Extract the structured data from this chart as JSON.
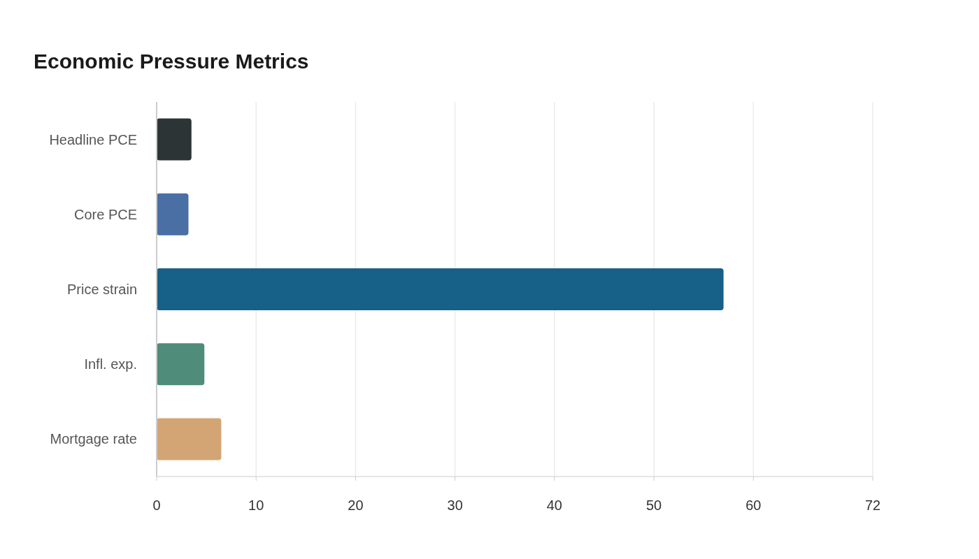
{
  "chart_data": {
    "type": "bar",
    "title": "Economic Pressure Metrics",
    "orientation": "horizontal",
    "categories": [
      "Headline PCE",
      "Core PCE",
      "Price strain",
      "Infl. exp.",
      "Mortgage rate"
    ],
    "values": [
      3.5,
      3.2,
      57,
      4.8,
      6.5
    ],
    "colors": [
      "#2d3436",
      "#4a6fa5",
      "#176087",
      "#4f8c7a",
      "#d4a574"
    ],
    "xlim": [
      0,
      72
    ],
    "xticks": [
      0,
      10,
      20,
      30,
      40,
      50,
      60,
      72
    ],
    "grid": "x"
  }
}
